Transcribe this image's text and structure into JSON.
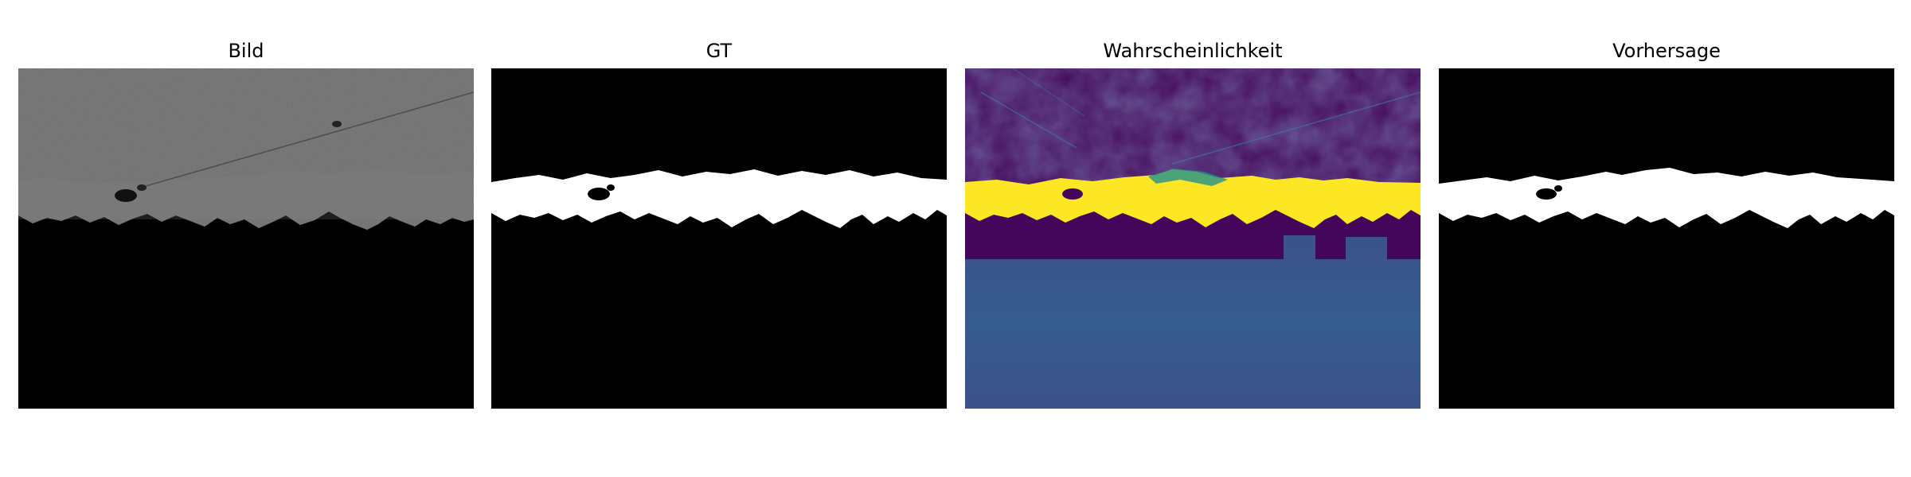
{
  "panels": [
    {
      "title": "Bild"
    },
    {
      "title": "GT"
    },
    {
      "title": "Wahrscheinlichkeit"
    },
    {
      "title": "Vorhersage"
    }
  ],
  "colors": {
    "background": "#ffffff",
    "mask_fg": "#ffffff",
    "mask_bg": "#000000",
    "sem_gray": "#6a6a6a",
    "viridis_low": "#44065a",
    "viridis_mid": "#21918c",
    "viridis_high": "#fde725",
    "viridis_fill": "#3b528b"
  }
}
